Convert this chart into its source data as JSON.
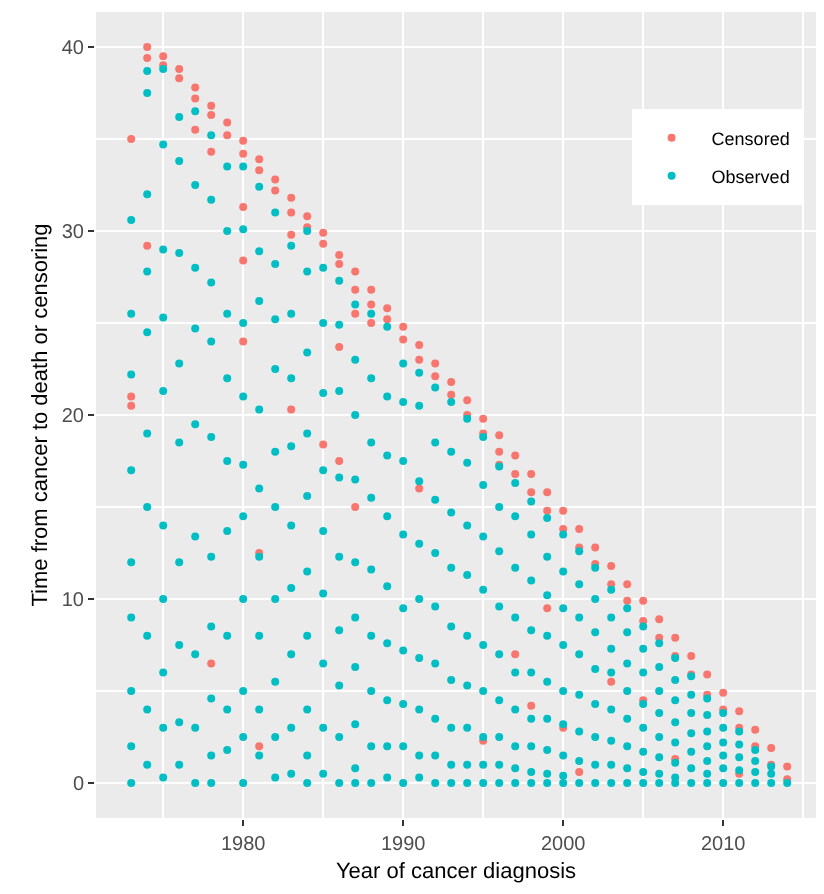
{
  "chart_data": {
    "type": "scatter",
    "xlabel": "Year of cancer diagnosis",
    "ylabel": "Time from cancer to death or censoring",
    "xlim": [
      1970.8,
      2015.8
    ],
    "xticks": [
      1980,
      1990,
      2000,
      2010
    ],
    "ylim": [
      -1.9,
      41.9
    ],
    "yticks": [
      0,
      10,
      20,
      30,
      40
    ],
    "grid": true,
    "legend": "top right",
    "marker": "circle",
    "series": [
      {
        "name": "Censored",
        "color": "#f8766d",
        "x": [
          1973,
          1973,
          1973,
          1974,
          1974,
          1974,
          1975,
          1975,
          1976,
          1976,
          1977,
          1977,
          1977,
          1978,
          1978,
          1978,
          1978,
          1979,
          1979,
          1980,
          1980,
          1980,
          1980,
          1980,
          1981,
          1981,
          1981,
          1981,
          1982,
          1982,
          1983,
          1983,
          1983,
          1983,
          1984,
          1984,
          1985,
          1985,
          1985,
          1986,
          1986,
          1986,
          1986,
          1987,
          1987,
          1987,
          1987,
          1988,
          1988,
          1988,
          1989,
          1989,
          1990,
          1990,
          1991,
          1991,
          1991,
          1992,
          1992,
          1993,
          1993,
          1994,
          1994,
          1995,
          1995,
          1995,
          1996,
          1996,
          1996,
          1997,
          1997,
          1997,
          1998,
          1998,
          1998,
          1999,
          1999,
          1999,
          2000,
          2000,
          2000,
          2001,
          2001,
          2001,
          2002,
          2002,
          2003,
          2003,
          2003,
          2004,
          2004,
          2005,
          2005,
          2005,
          2006,
          2006,
          2007,
          2007,
          2007,
          2008,
          2008,
          2009,
          2009,
          2010,
          2010,
          2011,
          2011,
          2011,
          2012,
          2012,
          2013,
          2013,
          2014,
          2014
        ],
        "values": [
          35,
          21,
          20.5,
          40,
          39.4,
          29.2,
          39.5,
          39,
          38.8,
          38.3,
          37.8,
          37.2,
          35.5,
          36.8,
          36.3,
          34.3,
          6.5,
          35.9,
          35.2,
          34.9,
          34.2,
          31.3,
          28.4,
          24,
          33.9,
          33.3,
          12.5,
          2,
          32.8,
          32.2,
          31.8,
          31,
          29.8,
          20.3,
          30.8,
          30.2,
          29.9,
          29.3,
          18.4,
          28.7,
          28.2,
          23.7,
          17.5,
          27.8,
          26.8,
          25.5,
          15,
          26.8,
          26,
          25,
          25.8,
          25.2,
          24.8,
          24.1,
          23.8,
          23,
          16,
          22.8,
          22.1,
          21.8,
          21.1,
          20.8,
          20,
          19.8,
          19,
          2.3,
          18.9,
          18,
          17.3,
          17.8,
          16.8,
          7,
          16.8,
          15.8,
          4.2,
          15.8,
          14.8,
          9.5,
          14.8,
          13.8,
          3,
          13.8,
          12.8,
          0.6,
          12.8,
          11.9,
          11.8,
          10.8,
          5.5,
          10.8,
          9.9,
          9.9,
          8.8,
          4.5,
          8.9,
          7.9,
          7.9,
          6.9,
          1.3,
          6.9,
          5.9,
          5.9,
          4.8,
          4.9,
          4,
          3.9,
          3,
          0.5,
          2.9,
          2,
          1.9,
          1,
          0.9,
          0.2
        ]
      },
      {
        "name": "Observed",
        "color": "#00bfc4",
        "x": [
          1973,
          1973,
          1973,
          1973,
          1973,
          1973,
          1973,
          1973,
          1973,
          1974,
          1974,
          1974,
          1974,
          1974,
          1974,
          1974,
          1974,
          1974,
          1974,
          1975,
          1975,
          1975,
          1975,
          1975,
          1975,
          1975,
          1975,
          1975,
          1975,
          1976,
          1976,
          1976,
          1976,
          1976,
          1976,
          1976,
          1976,
          1976,
          1977,
          1977,
          1977,
          1977,
          1977,
          1977,
          1977,
          1977,
          1977,
          1978,
          1978,
          1978,
          1978,
          1978,
          1978,
          1978,
          1978,
          1978,
          1978,
          1979,
          1979,
          1979,
          1979,
          1979,
          1979,
          1979,
          1979,
          1979,
          1980,
          1980,
          1980,
          1980,
          1980,
          1980,
          1980,
          1980,
          1980,
          1980,
          1981,
          1981,
          1981,
          1981,
          1981,
          1981,
          1981,
          1981,
          1981,
          1982,
          1982,
          1982,
          1982,
          1982,
          1982,
          1982,
          1982,
          1982,
          1982,
          1983,
          1983,
          1983,
          1983,
          1983,
          1983,
          1983,
          1983,
          1983,
          1984,
          1984,
          1984,
          1984,
          1984,
          1984,
          1984,
          1984,
          1984,
          1984,
          1985,
          1985,
          1985,
          1985,
          1985,
          1985,
          1985,
          1985,
          1985,
          1986,
          1986,
          1986,
          1986,
          1986,
          1986,
          1986,
          1986,
          1986,
          1987,
          1987,
          1987,
          1987,
          1987,
          1987,
          1987,
          1987,
          1987,
          1987,
          1988,
          1988,
          1988,
          1988,
          1988,
          1988,
          1988,
          1988,
          1988,
          1989,
          1989,
          1989,
          1989,
          1989,
          1989,
          1989,
          1989,
          1989,
          1990,
          1990,
          1990,
          1990,
          1990,
          1990,
          1990,
          1990,
          1990,
          1991,
          1991,
          1991,
          1991,
          1991,
          1991,
          1991,
          1991,
          1991,
          1992,
          1992,
          1992,
          1992,
          1992,
          1992,
          1992,
          1992,
          1992,
          1993,
          1993,
          1993,
          1993,
          1993,
          1993,
          1993,
          1993,
          1993,
          1994,
          1994,
          1994,
          1994,
          1994,
          1994,
          1994,
          1994,
          1994,
          1995,
          1995,
          1995,
          1995,
          1995,
          1995,
          1995,
          1995,
          1995,
          1996,
          1996,
          1996,
          1996,
          1996,
          1996,
          1996,
          1996,
          1996,
          1997,
          1997,
          1997,
          1997,
          1997,
          1997,
          1997,
          1997,
          1997,
          1998,
          1998,
          1998,
          1998,
          1998,
          1998,
          1998,
          1998,
          1998,
          1999,
          1999,
          1999,
          1999,
          1999,
          1999,
          1999,
          1999,
          1999,
          2000,
          2000,
          2000,
          2000,
          2000,
          2000,
          2000,
          2000,
          2000,
          2001,
          2001,
          2001,
          2001,
          2001,
          2001,
          2001,
          2001,
          2002,
          2002,
          2002,
          2002,
          2002,
          2002,
          2002,
          2002,
          2003,
          2003,
          2003,
          2003,
          2003,
          2003,
          2003,
          2003,
          2004,
          2004,
          2004,
          2004,
          2004,
          2004,
          2004,
          2004,
          2005,
          2005,
          2005,
          2005,
          2005,
          2005,
          2005,
          2005,
          2006,
          2006,
          2006,
          2006,
          2006,
          2006,
          2006,
          2006,
          2007,
          2007,
          2007,
          2007,
          2007,
          2007,
          2007,
          2007,
          2008,
          2008,
          2008,
          2008,
          2008,
          2008,
          2008,
          2009,
          2009,
          2009,
          2009,
          2009,
          2009,
          2009,
          2010,
          2010,
          2010,
          2010,
          2010,
          2010,
          2011,
          2011,
          2011,
          2011,
          2011,
          2012,
          2012,
          2012,
          2012,
          2013,
          2013,
          2013,
          2014
        ],
        "values": [
          30.6,
          25.5,
          22.2,
          17,
          12,
          9,
          5,
          2,
          0,
          38.7,
          37.5,
          32,
          27.8,
          24.5,
          19,
          15,
          8,
          4,
          1,
          38.8,
          34.7,
          29,
          25.3,
          21.3,
          14,
          10,
          6,
          3,
          0.3,
          36.2,
          33.8,
          28.8,
          22.8,
          18.5,
          12,
          7.5,
          3.3,
          1,
          36.5,
          32.5,
          28,
          24.7,
          19.5,
          13.4,
          7,
          3,
          0,
          35.2,
          31.7,
          27.2,
          24,
          18.8,
          12.3,
          8.5,
          4.6,
          1.5,
          0,
          33.5,
          30,
          25.5,
          22,
          17.5,
          13.7,
          8,
          4,
          1.8,
          33.5,
          30.1,
          25,
          21,
          17.3,
          14.5,
          10,
          5,
          2.5,
          0,
          32.4,
          28.9,
          26.2,
          20.3,
          16,
          12.3,
          8,
          4,
          1.5,
          31,
          28.2,
          25.2,
          22.5,
          18,
          15,
          10,
          5.5,
          2.5,
          0.3,
          29.2,
          25.5,
          22,
          18.3,
          14,
          10.6,
          7,
          3,
          0.5,
          30,
          27.8,
          23.4,
          19,
          15.6,
          11.5,
          8,
          4,
          1.5,
          0,
          28,
          25,
          21.2,
          17,
          13.7,
          10.3,
          6.5,
          3,
          0.5,
          27.3,
          24.9,
          21.3,
          16.6,
          12.3,
          8.3,
          5.3,
          2.5,
          0,
          26,
          23,
          20,
          16.5,
          12,
          9,
          6.3,
          3.2,
          0.8,
          0,
          25.5,
          22,
          18.5,
          15.5,
          11.6,
          8,
          5,
          2,
          0,
          24.8,
          21,
          17.8,
          14.5,
          10.7,
          7.6,
          4.5,
          2,
          0.3,
          22.8,
          20.7,
          17.5,
          13.5,
          9.5,
          7.2,
          4.3,
          2,
          0,
          22.3,
          20.5,
          16.4,
          13,
          10,
          6.8,
          4,
          1.5,
          0.3,
          21.5,
          18.5,
          15.4,
          12.5,
          9.6,
          6.5,
          3.5,
          1.5,
          0,
          20.7,
          18,
          14.7,
          11.7,
          8.5,
          5.6,
          3,
          1,
          0,
          19.8,
          17.4,
          14,
          11.3,
          8,
          5.3,
          3,
          1,
          0,
          18.8,
          16.2,
          13.4,
          10.5,
          7.5,
          5,
          2.5,
          1,
          0,
          17.2,
          15,
          12.6,
          9.6,
          7,
          4.5,
          2.5,
          1,
          0,
          16.3,
          14.5,
          11.7,
          9,
          6,
          4,
          2,
          0.8,
          0,
          15.3,
          13.5,
          11,
          8.3,
          6,
          3.5,
          2,
          0.6,
          0,
          14.4,
          12.3,
          10.2,
          8,
          5.5,
          3.5,
          1.8,
          0.5,
          0,
          13.5,
          11.5,
          9.5,
          7.5,
          5,
          3.2,
          1.5,
          0.4,
          0,
          12.6,
          10.8,
          9,
          7,
          4.8,
          2.8,
          1.2,
          0,
          11.7,
          10,
          8.2,
          6.2,
          4.3,
          2.5,
          1,
          0,
          10.5,
          9,
          7.3,
          6,
          4,
          2.3,
          1,
          0,
          9.5,
          8.2,
          6.5,
          5,
          3.5,
          2,
          0.8,
          0,
          8.5,
          7.3,
          6,
          4.3,
          3,
          1.7,
          0.6,
          0,
          7.6,
          6.3,
          5,
          3.8,
          2.5,
          1.4,
          0.5,
          0,
          6.8,
          5.6,
          4.5,
          3.3,
          2.2,
          1.1,
          0.3,
          0,
          5.8,
          4.8,
          3.8,
          2.7,
          1.7,
          0.8,
          0,
          4.6,
          3.7,
          2.8,
          2,
          1.2,
          0.5,
          0,
          3.8,
          3,
          2.2,
          1.5,
          0.8,
          0,
          2.8,
          2.1,
          1.4,
          0.7,
          0,
          1.8,
          1.2,
          0.6,
          0,
          0.9,
          0.5,
          0,
          0
        ]
      }
    ]
  }
}
